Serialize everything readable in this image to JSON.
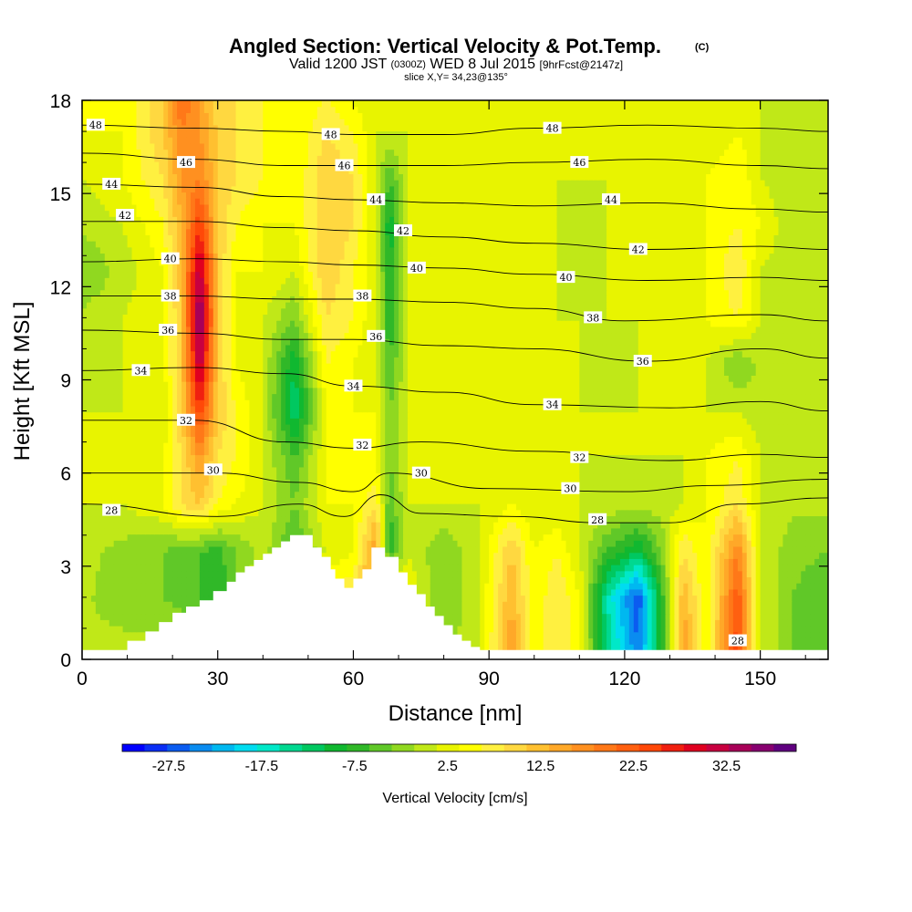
{
  "chart_data": {
    "type": "heatmap",
    "title": "Angled Section: Vertical Velocity & Pot.Temp.",
    "title_mark": "(C)",
    "subtitle_parts": [
      "Valid 1200 JST",
      "(0300Z)",
      "WED 8 Jul 2015",
      "[9hrFcst@2147z]"
    ],
    "slice_label": "slice X,Y= 34,23@135°",
    "xlabel": "Distance [nm]",
    "ylabel": "Height [Kft MSL]",
    "xlim": [
      0,
      165
    ],
    "ylim": [
      0,
      18
    ],
    "xticks": [
      0,
      30,
      60,
      90,
      120,
      150
    ],
    "yticks": [
      0,
      3,
      6,
      9,
      12,
      15,
      18
    ],
    "colorbar": {
      "label": "Vertical Velocity [cm/s]",
      "tick_labels": [
        "-27.5",
        "-17.5",
        "-7.5",
        "2.5",
        "12.5",
        "22.5",
        "32.5"
      ],
      "tick_values": [
        -27.5,
        -17.5,
        -7.5,
        2.5,
        12.5,
        22.5,
        32.5
      ],
      "min": -32.5,
      "max": 40,
      "step": 2.5,
      "colors": [
        "#0000ff",
        "#0a2ef5",
        "#0b5cf0",
        "#0a8cf0",
        "#00b8f0",
        "#00dcf0",
        "#00e8c8",
        "#00d890",
        "#00c860",
        "#10b830",
        "#30b828",
        "#60c828",
        "#90d820",
        "#c0e818",
        "#e8f400",
        "#ffff00",
        "#fff040",
        "#ffd840",
        "#ffc030",
        "#ffa828",
        "#ff9020",
        "#ff7818",
        "#ff6010",
        "#ff4808",
        "#f02010",
        "#e00020",
        "#c80040",
        "#a80058",
        "#880070",
        "#600080"
      ]
    },
    "cells": {
      "x": [
        0,
        9,
        18,
        22,
        26,
        30,
        34,
        40,
        47,
        54,
        60,
        65,
        68,
        72,
        80,
        88,
        95,
        100,
        105,
        110,
        116,
        123,
        128,
        133,
        138,
        145,
        150,
        157,
        165
      ],
      "y": [
        0.3,
        2,
        3.5,
        5,
        6.5,
        8,
        9.5,
        11,
        12.5,
        14,
        15.5,
        17,
        18
      ],
      "values": [
        [
          0.5,
          1,
          1.5,
          2.5,
          0.5,
          -0.5,
          -1,
          2.5,
          5,
          7.5,
          10,
          17.5,
          12.5,
          5,
          -1.5,
          2.5,
          17.5,
          5,
          10,
          5,
          -12.5,
          -25,
          -7.5,
          17.5,
          5,
          27.5,
          2.5,
          -2.5,
          -5
        ],
        [
          0.5,
          -1.5,
          -2.5,
          -4,
          -5,
          -7.5,
          -2.5,
          2.5,
          5,
          7.5,
          10,
          20,
          15,
          5,
          -2.5,
          2.5,
          15,
          5,
          10,
          5,
          -15,
          -27.5,
          -7.5,
          15,
          5,
          25,
          2.5,
          -2.5,
          -5
        ],
        [
          1,
          -1,
          -2.5,
          -4,
          -5,
          -6,
          -2.5,
          1.5,
          -6,
          3,
          5,
          17.5,
          -7.5,
          2.5,
          -2.5,
          2.5,
          12.5,
          5,
          7.5,
          2.5,
          -5,
          -10,
          -2.5,
          10,
          5,
          20,
          2.5,
          -1.5,
          -2.5
        ],
        [
          2.5,
          2.5,
          5,
          10,
          12.5,
          7.5,
          5,
          2.5,
          -2.5,
          5,
          5,
          10,
          -5,
          2.5,
          2.5,
          2.5,
          5,
          2.5,
          2.5,
          2.5,
          1.5,
          1,
          1.5,
          2.5,
          5,
          10,
          2.5,
          0.5,
          1
        ],
        [
          2.5,
          2.5,
          5,
          10,
          17.5,
          10,
          7.5,
          2.5,
          -5,
          5,
          5,
          5,
          -2.5,
          2.5,
          2.5,
          2.5,
          2.5,
          2.5,
          2.5,
          2.5,
          2.5,
          2.5,
          2.5,
          2.5,
          5,
          7.5,
          2.5,
          0.5,
          0.5
        ],
        [
          2.5,
          2.5,
          2.5,
          12.5,
          27.5,
          12.5,
          7.5,
          2.5,
          -12.5,
          5,
          5,
          5,
          -2.5,
          2.5,
          2.5,
          2.5,
          5,
          2.5,
          2.5,
          2.5,
          2.5,
          2.5,
          2.5,
          2.5,
          2.5,
          2.5,
          1,
          0.5,
          0.5
        ],
        [
          1.5,
          2.5,
          5,
          12.5,
          35,
          12.5,
          5,
          2.5,
          -10,
          7.5,
          5,
          2.5,
          -5,
          2.5,
          2.5,
          2.5,
          5,
          2.5,
          2.5,
          2.5,
          1.5,
          2.5,
          2.5,
          2.5,
          2.5,
          -2.5,
          0.5,
          0.5,
          0.5
        ],
        [
          0.5,
          2.5,
          5,
          12.5,
          40,
          12.5,
          5,
          2.5,
          -2.5,
          10,
          7.5,
          2.5,
          -7.5,
          2.5,
          2.5,
          2.5,
          2.5,
          2.5,
          2.5,
          2.5,
          2.5,
          2.5,
          2.5,
          2.5,
          5,
          7.5,
          2.5,
          0.5,
          0.5
        ],
        [
          -2.5,
          1,
          5,
          15,
          35,
          12.5,
          5,
          5,
          2.5,
          12.5,
          7.5,
          2.5,
          -7.5,
          2.5,
          2.5,
          2.5,
          2.5,
          2.5,
          2.5,
          0.5,
          2.5,
          2.5,
          2.5,
          2.5,
          5,
          10,
          2.5,
          0.5,
          0.5
        ],
        [
          0.5,
          2.5,
          7.5,
          15,
          27.5,
          12.5,
          7.5,
          5,
          5,
          12.5,
          10,
          2.5,
          -10,
          2.5,
          2.5,
          2.5,
          2.5,
          2.5,
          2.5,
          0.5,
          2.5,
          2.5,
          2.5,
          2.5,
          5,
          7.5,
          5,
          0.5,
          0.5
        ],
        [
          2.5,
          5,
          10,
          17.5,
          20,
          12.5,
          10,
          7.5,
          5,
          12.5,
          10,
          2.5,
          -5,
          2.5,
          2.5,
          2.5,
          2.5,
          2.5,
          2.5,
          2.5,
          2.5,
          2.5,
          2.5,
          2.5,
          5,
          7.5,
          2.5,
          0.5,
          0.5
        ],
        [
          5,
          5,
          12.5,
          20,
          17.5,
          12.5,
          10,
          7.5,
          5,
          10,
          7.5,
          2.5,
          2.5,
          2.5,
          2.5,
          2.5,
          2.5,
          2.5,
          2.5,
          2.5,
          2.5,
          2.5,
          2.5,
          2.5,
          2.5,
          5,
          2.5,
          0.5,
          0.5
        ],
        [
          5,
          5,
          12.5,
          22.5,
          17.5,
          10,
          10,
          7.5,
          5,
          7.5,
          5,
          2.5,
          2.5,
          2.5,
          2.5,
          2.5,
          2.5,
          2.5,
          2.5,
          2.5,
          2.5,
          2.5,
          2.5,
          2.5,
          2.5,
          2.5,
          2.5,
          0.5,
          0.5
        ]
      ]
    },
    "terrain": {
      "x": [
        0,
        10,
        10,
        14,
        14,
        17,
        17,
        20,
        20,
        23,
        23,
        26,
        26,
        29,
        29,
        32,
        32,
        34,
        34,
        36,
        36,
        38,
        38,
        40,
        40,
        42,
        42,
        44,
        44,
        46,
        46,
        51,
        51,
        53,
        53,
        55,
        55,
        56,
        56,
        58,
        58,
        60,
        60,
        62,
        62,
        64,
        64,
        67,
        67,
        70,
        70,
        72,
        72,
        74,
        74,
        76,
        76,
        78,
        78,
        80,
        80,
        82,
        82,
        84,
        84,
        86,
        86,
        88,
        88,
        165
      ],
      "y": [
        0.3,
        0.3,
        0.6,
        0.6,
        0.9,
        0.9,
        1.2,
        1.2,
        1.5,
        1.5,
        1.7,
        1.7,
        1.9,
        1.9,
        2.2,
        2.2,
        2.5,
        2.5,
        2.8,
        2.8,
        3.0,
        3.0,
        3.2,
        3.2,
        3.4,
        3.4,
        3.6,
        3.6,
        3.8,
        3.8,
        4.0,
        4.0,
        3.6,
        3.6,
        3.3,
        3.3,
        2.9,
        2.9,
        2.6,
        2.6,
        2.3,
        2.3,
        2.6,
        2.6,
        2.9,
        2.9,
        3.6,
        3.6,
        3.3,
        3.3,
        2.8,
        2.8,
        2.4,
        2.4,
        2.1,
        2.1,
        1.7,
        1.7,
        1.4,
        1.4,
        1.1,
        1.1,
        0.8,
        0.8,
        0.6,
        0.6,
        0.4,
        0.4,
        0.3,
        0.3
      ]
    },
    "isentropes": [
      {
        "value": 28,
        "label": "28",
        "points": [
          [
            0,
            5.0
          ],
          [
            30,
            4.6
          ],
          [
            48,
            5.0
          ],
          [
            58,
            4.6
          ],
          [
            66,
            5.3
          ],
          [
            75,
            4.7
          ],
          [
            95,
            4.6
          ],
          [
            115,
            4.4
          ],
          [
            130,
            4.4
          ],
          [
            145,
            5.0
          ],
          [
            165,
            5.2
          ]
        ]
      },
      {
        "value": 30,
        "label": "30",
        "points": [
          [
            0,
            6.0
          ],
          [
            30,
            6.0
          ],
          [
            48,
            5.7
          ],
          [
            60,
            5.4
          ],
          [
            68,
            6.0
          ],
          [
            90,
            5.5
          ],
          [
            120,
            5.4
          ],
          [
            140,
            5.6
          ],
          [
            165,
            5.8
          ]
        ]
      },
      {
        "value": 32,
        "label": "32",
        "points": [
          [
            0,
            7.7
          ],
          [
            25,
            7.7
          ],
          [
            45,
            7.0
          ],
          [
            60,
            6.8
          ],
          [
            75,
            7.0
          ],
          [
            100,
            6.7
          ],
          [
            130,
            6.4
          ],
          [
            150,
            6.6
          ],
          [
            165,
            6.5
          ]
        ]
      },
      {
        "value": 34,
        "label": "34",
        "points": [
          [
            0,
            9.3
          ],
          [
            25,
            9.4
          ],
          [
            45,
            9.2
          ],
          [
            60,
            8.8
          ],
          [
            80,
            8.6
          ],
          [
            100,
            8.2
          ],
          [
            130,
            8.1
          ],
          [
            150,
            8.3
          ],
          [
            165,
            8.0
          ]
        ]
      },
      {
        "value": 36,
        "label": "36",
        "points": [
          [
            0,
            10.6
          ],
          [
            25,
            10.5
          ],
          [
            45,
            10.3
          ],
          [
            60,
            10.3
          ],
          [
            80,
            10.1
          ],
          [
            100,
            10.0
          ],
          [
            125,
            9.6
          ],
          [
            150,
            10.0
          ],
          [
            165,
            9.7
          ]
        ]
      },
      {
        "value": 38,
        "label": "38",
        "points": [
          [
            0,
            11.7
          ],
          [
            25,
            11.7
          ],
          [
            45,
            11.6
          ],
          [
            60,
            11.6
          ],
          [
            80,
            11.5
          ],
          [
            100,
            11.3
          ],
          [
            120,
            10.9
          ],
          [
            150,
            11.1
          ],
          [
            165,
            10.9
          ]
        ]
      },
      {
        "value": 40,
        "label": "40",
        "points": [
          [
            0,
            12.8
          ],
          [
            25,
            12.9
          ],
          [
            45,
            12.8
          ],
          [
            60,
            12.7
          ],
          [
            80,
            12.6
          ],
          [
            100,
            12.4
          ],
          [
            125,
            12.2
          ],
          [
            150,
            12.3
          ],
          [
            165,
            12.2
          ]
        ]
      },
      {
        "value": 42,
        "label": "42",
        "points": [
          [
            0,
            14.1
          ],
          [
            25,
            14.1
          ],
          [
            45,
            13.9
          ],
          [
            60,
            13.8
          ],
          [
            80,
            13.6
          ],
          [
            100,
            13.4
          ],
          [
            125,
            13.2
          ],
          [
            150,
            13.3
          ],
          [
            165,
            13.2
          ]
        ]
      },
      {
        "value": 44,
        "label": "44",
        "points": [
          [
            0,
            15.3
          ],
          [
            25,
            15.2
          ],
          [
            45,
            14.9
          ],
          [
            60,
            14.8
          ],
          [
            80,
            14.7
          ],
          [
            100,
            14.6
          ],
          [
            125,
            14.7
          ],
          [
            150,
            14.5
          ],
          [
            165,
            14.4
          ]
        ]
      },
      {
        "value": 46,
        "label": "46",
        "points": [
          [
            0,
            16.3
          ],
          [
            25,
            16.1
          ],
          [
            45,
            15.9
          ],
          [
            60,
            15.9
          ],
          [
            80,
            15.9
          ],
          [
            100,
            16.0
          ],
          [
            125,
            16.1
          ],
          [
            150,
            15.9
          ],
          [
            165,
            15.8
          ]
        ]
      },
      {
        "value": 48,
        "label": "48",
        "points": [
          [
            0,
            17.2
          ],
          [
            25,
            17.1
          ],
          [
            45,
            17.0
          ],
          [
            60,
            16.9
          ],
          [
            80,
            16.9
          ],
          [
            100,
            17.1
          ],
          [
            125,
            17.2
          ],
          [
            150,
            17.1
          ],
          [
            165,
            17.0
          ]
        ]
      }
    ],
    "isentrope_labels": [
      {
        "text": "48",
        "x": 3,
        "y": 17.2
      },
      {
        "text": "46",
        "x": 23,
        "y": 16.0
      },
      {
        "text": "44",
        "x": 6.5,
        "y": 15.3
      },
      {
        "text": "42",
        "x": 9.5,
        "y": 14.3
      },
      {
        "text": "40",
        "x": 19.5,
        "y": 12.9
      },
      {
        "text": "38",
        "x": 19.5,
        "y": 11.7
      },
      {
        "text": "36",
        "x": 19,
        "y": 10.6
      },
      {
        "text": "34",
        "x": 13,
        "y": 9.3
      },
      {
        "text": "32",
        "x": 23,
        "y": 7.7
      },
      {
        "text": "30",
        "x": 29,
        "y": 6.1
      },
      {
        "text": "28",
        "x": 6.5,
        "y": 4.8
      },
      {
        "text": "48",
        "x": 55,
        "y": 16.9
      },
      {
        "text": "46",
        "x": 58,
        "y": 15.9
      },
      {
        "text": "44",
        "x": 65,
        "y": 14.8
      },
      {
        "text": "42",
        "x": 71,
        "y": 13.8
      },
      {
        "text": "40",
        "x": 74,
        "y": 12.6
      },
      {
        "text": "38",
        "x": 62,
        "y": 11.7
      },
      {
        "text": "36",
        "x": 65,
        "y": 10.4
      },
      {
        "text": "34",
        "x": 60,
        "y": 8.8
      },
      {
        "text": "32",
        "x": 62,
        "y": 6.9
      },
      {
        "text": "30",
        "x": 75,
        "y": 6.0
      },
      {
        "text": "48",
        "x": 104,
        "y": 17.1
      },
      {
        "text": "46",
        "x": 110,
        "y": 16.0
      },
      {
        "text": "44",
        "x": 117,
        "y": 14.8
      },
      {
        "text": "42",
        "x": 123,
        "y": 13.2
      },
      {
        "text": "40",
        "x": 107,
        "y": 12.3
      },
      {
        "text": "38",
        "x": 113,
        "y": 11.0
      },
      {
        "text": "36",
        "x": 124,
        "y": 9.6
      },
      {
        "text": "34",
        "x": 104,
        "y": 8.2
      },
      {
        "text": "32",
        "x": 110,
        "y": 6.5
      },
      {
        "text": "30",
        "x": 108,
        "y": 5.5
      },
      {
        "text": "28",
        "x": 114,
        "y": 4.5
      },
      {
        "text": "28",
        "x": 145,
        "y": 0.6
      }
    ]
  }
}
